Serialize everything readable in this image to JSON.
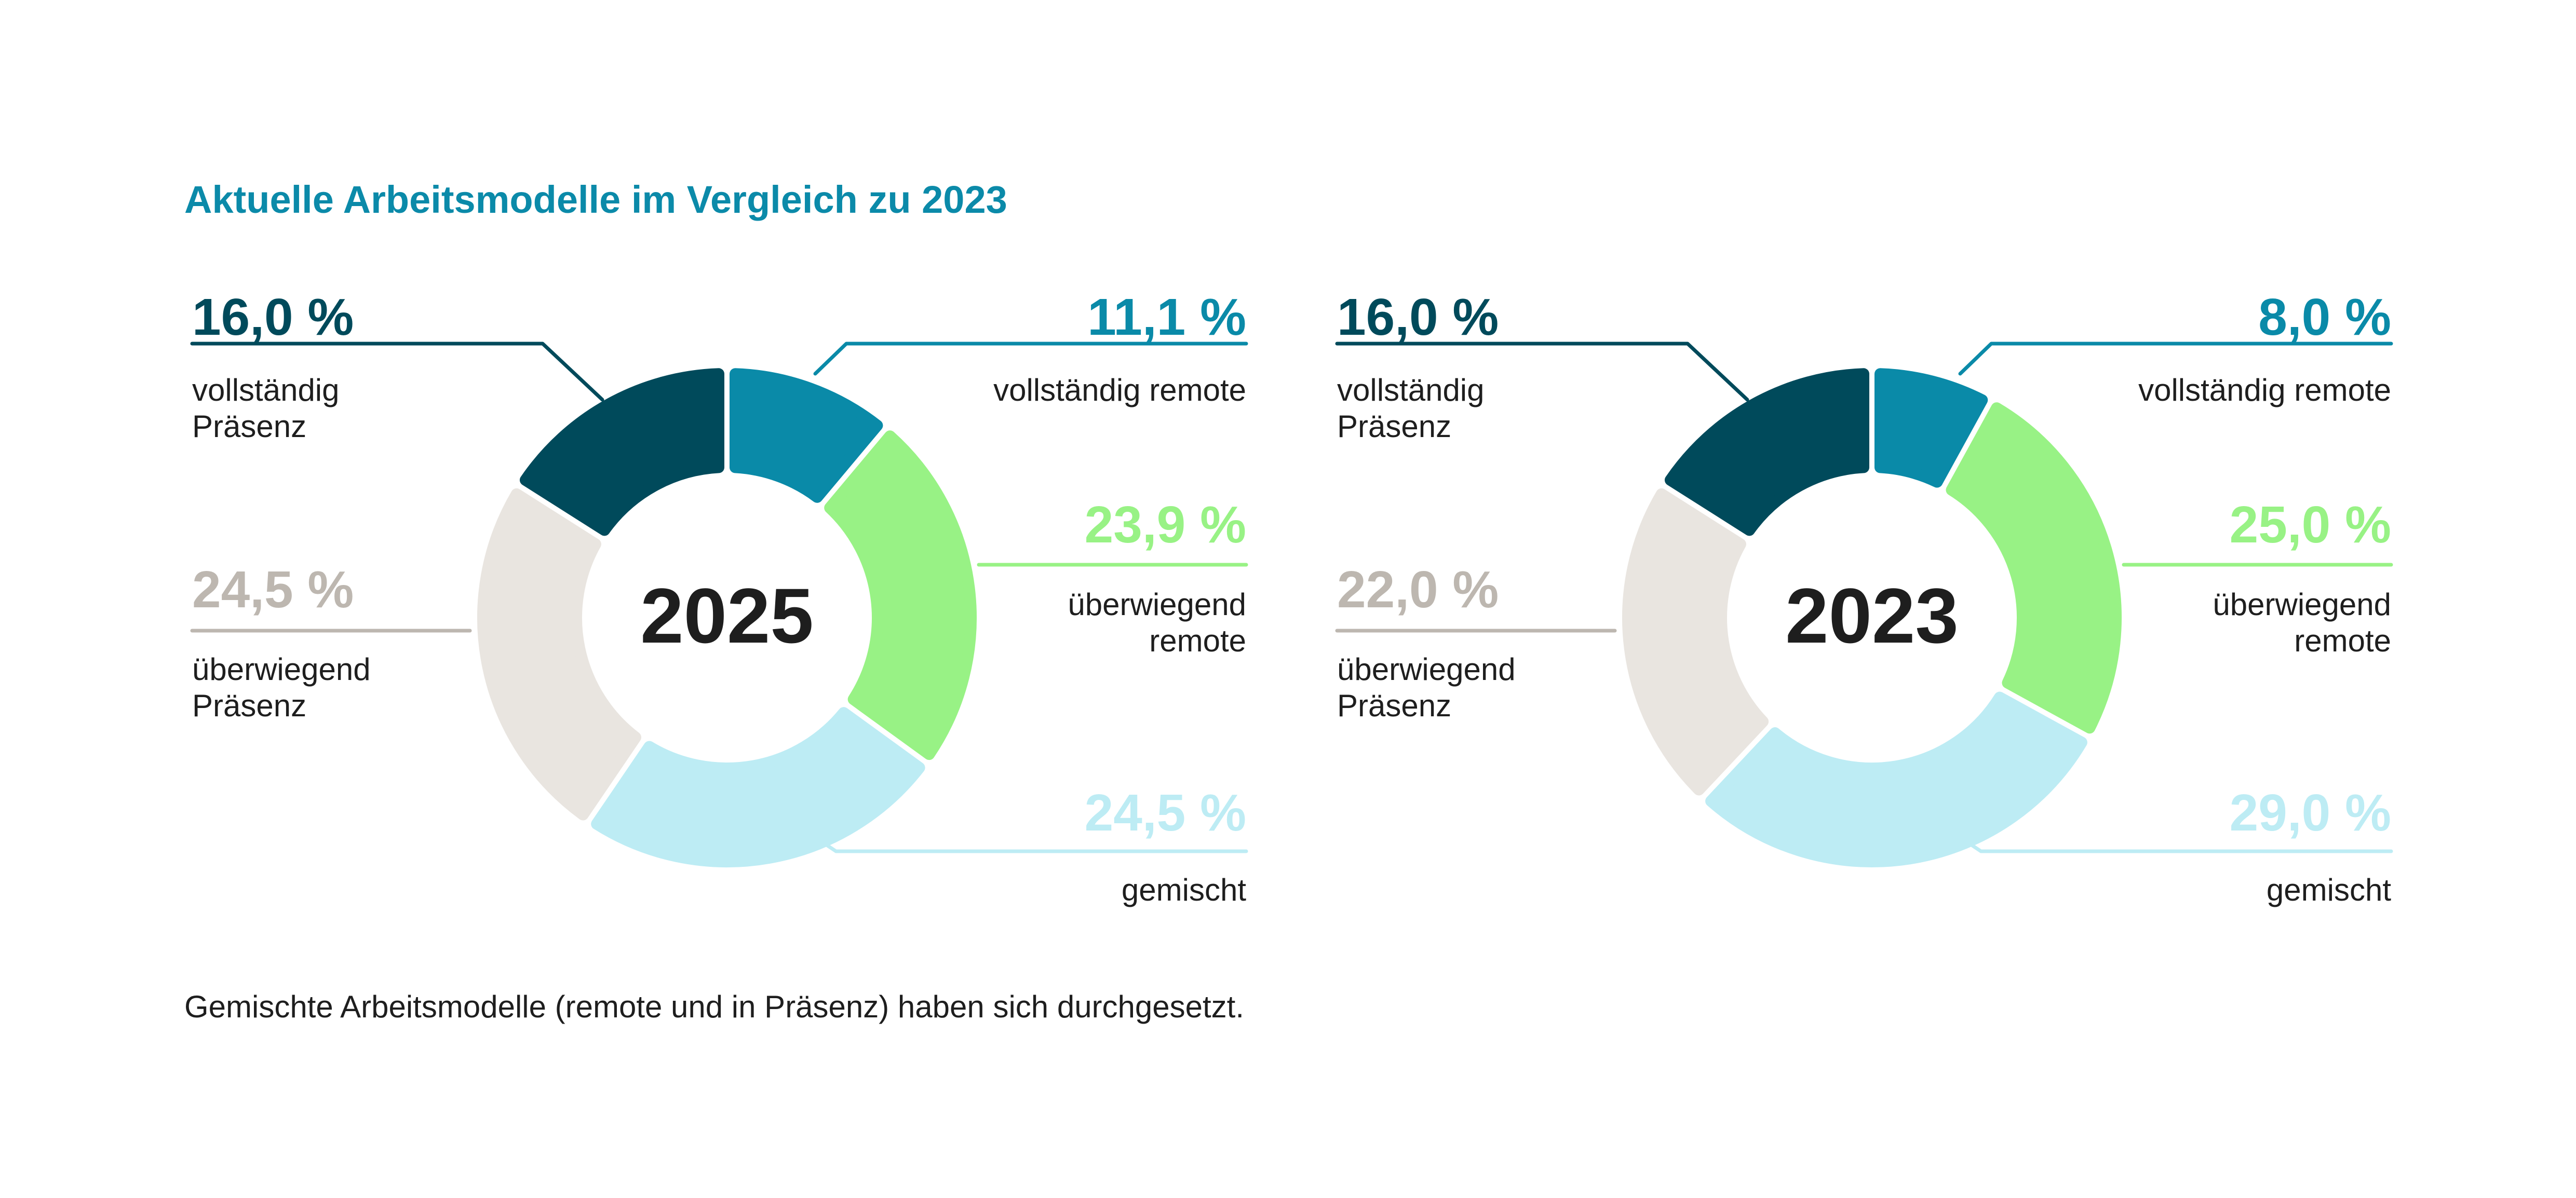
{
  "title": "Aktuelle Arbeitsmodelle im Vergleich zu 2023",
  "footnote": "Gemischte Arbeitsmodelle (remote und in Präsenz) haben sich durchgesetzt.",
  "colors": {
    "title": "#0b8aa9",
    "text": "#1e1e1e",
    "center_label": "#1e1e1e",
    "vollstaendig_praesenz": "#004a5b",
    "vollstaendig_remote": "#0a8aa8",
    "ueberwiegend_remote": "#98f285",
    "gemischt": "#bdecf4",
    "ueberwiegend_praesenz": "#e9e5e0",
    "ueberwiegend_praesenz_value": "#bdb7b0"
  },
  "chart_data": [
    {
      "type": "pie",
      "center_label": "2025",
      "slices": [
        {
          "key": "vollstaendig_praesenz",
          "label": "vollständig Präsenz",
          "value": 16.0,
          "value_text": "16,0 %"
        },
        {
          "key": "vollstaendig_remote",
          "label": "vollständig remote",
          "value": 11.1,
          "value_text": "11,1 %"
        },
        {
          "key": "ueberwiegend_remote",
          "label": "überwiegend remote",
          "value": 23.9,
          "value_text": "23,9 %"
        },
        {
          "key": "gemischt",
          "label": "gemischt",
          "value": 24.5,
          "value_text": "24,5 %"
        },
        {
          "key": "ueberwiegend_praesenz",
          "label": "überwiegend Präsenz",
          "value": 24.5,
          "value_text": "24,5 %"
        }
      ]
    },
    {
      "type": "pie",
      "center_label": "2023",
      "slices": [
        {
          "key": "vollstaendig_praesenz",
          "label": "vollständig Präsenz",
          "value": 16.0,
          "value_text": "16,0 %"
        },
        {
          "key": "vollstaendig_remote",
          "label": "vollständig remote",
          "value": 8.0,
          "value_text": "8,0 %"
        },
        {
          "key": "ueberwiegend_remote",
          "label": "überwiegend remote",
          "value": 25.0,
          "value_text": "25,0 %"
        },
        {
          "key": "gemischt",
          "label": "gemischt",
          "value": 29.0,
          "value_text": "29,0 %"
        },
        {
          "key": "ueberwiegend_praesenz",
          "label": "überwiegend Präsenz",
          "value": 22.0,
          "value_text": "22,0 %"
        }
      ]
    }
  ]
}
